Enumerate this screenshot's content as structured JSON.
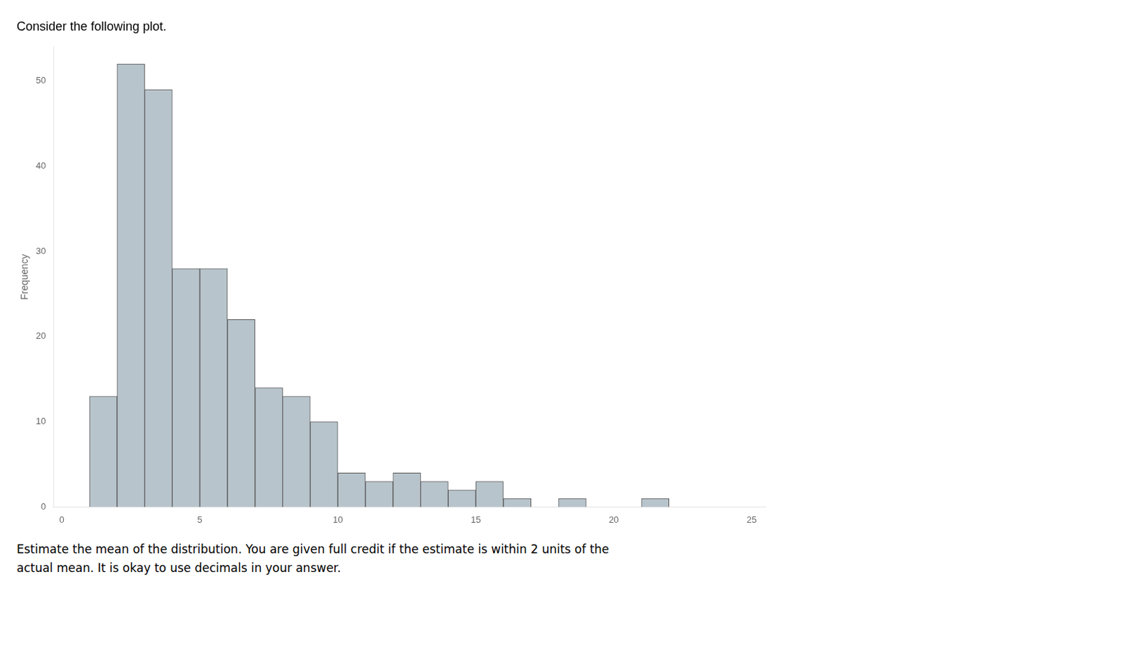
{
  "chart_data": {
    "type": "histogram",
    "title": "Consider the following plot.",
    "annotations": [
      "Estimate the mean of the distribution. You are given full credit if the estimate is within 2 units of the",
      "actual mean. It is okay to use decimals in your answer."
    ],
    "bins": [
      0,
      1,
      2,
      3,
      4,
      5,
      6,
      7,
      8,
      9,
      10,
      11,
      12,
      13,
      14,
      15,
      16,
      17,
      18,
      19,
      20,
      21,
      22,
      23,
      24,
      25
    ],
    "values": [
      0,
      13,
      52,
      49,
      28,
      28,
      22,
      14,
      13,
      10,
      4,
      3,
      4,
      3,
      2,
      3,
      1,
      0,
      1,
      0,
      0,
      1,
      0,
      0,
      0
    ],
    "color": "#b8c4cc",
    "ylabel": "Frequency",
    "xlim": [
      -0.3,
      25.5
    ],
    "ylim": [
      0,
      54
    ],
    "xticks": [
      0,
      5,
      10,
      15,
      20,
      25
    ],
    "yticks": [
      0,
      10,
      20,
      30,
      40,
      50
    ],
    "grid": false
  }
}
